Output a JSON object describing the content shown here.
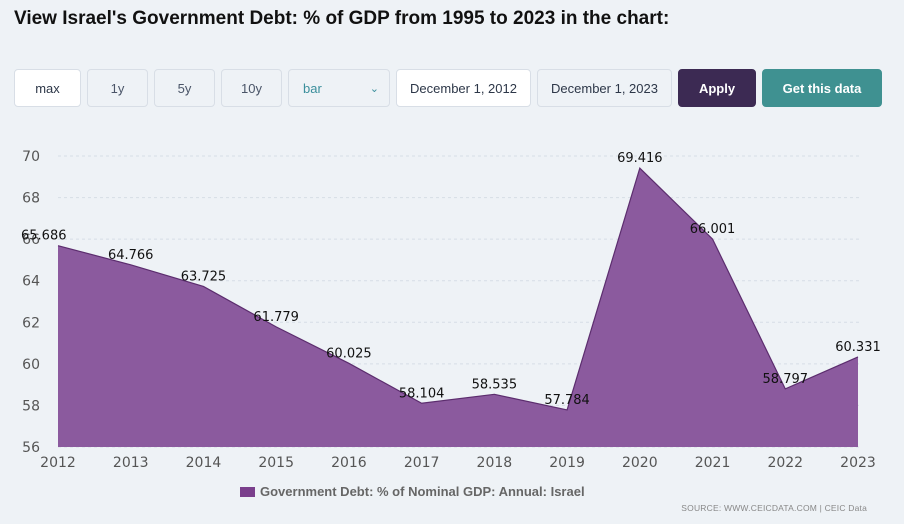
{
  "page_title": "View Israel's Government Debt: % of GDP from 1995 to 2023 in the chart:",
  "toolbar": {
    "ranges": [
      "max",
      "1y",
      "5y",
      "10y"
    ],
    "chart_type": "bar",
    "start_date": "December 1, 2012",
    "end_date": "December 1, 2023",
    "apply_label": "Apply",
    "get_data_label": "Get this data"
  },
  "colors": {
    "series_fill": "#8b5a9e",
    "series_line": "#5c2d6e",
    "apply_bg": "#3c2a53",
    "get_data_bg": "#3f9191"
  },
  "chart_data": {
    "type": "area",
    "title": "",
    "xlabel": "",
    "ylabel": "",
    "x": [
      "2012",
      "2013",
      "2014",
      "2015",
      "2016",
      "2017",
      "2018",
      "2019",
      "2020",
      "2021",
      "2022",
      "2023"
    ],
    "series": [
      {
        "name": "Government Debt: % of Nominal GDP: Annual: Israel",
        "values": [
          65.686,
          64.766,
          63.725,
          61.779,
          60.025,
          58.104,
          58.535,
          57.784,
          69.416,
          66.001,
          58.797,
          60.331
        ],
        "labels": [
          "65.686",
          "64.766",
          "63.725",
          "61.779",
          "60.025",
          "58.104",
          "58.535",
          "57.784",
          "69.416",
          "66.001",
          "58.797",
          "60.331"
        ]
      }
    ],
    "ylim": [
      56,
      70
    ],
    "yticks": [
      "56",
      "58",
      "60",
      "62",
      "64",
      "66",
      "68",
      "70"
    ],
    "grid": true,
    "legend_position": "bottom-center"
  },
  "legend": {
    "label": "Government Debt: % of Nominal GDP: Annual: Israel"
  },
  "source": "SOURCE: WWW.CEICDATA.COM | CEIC Data"
}
